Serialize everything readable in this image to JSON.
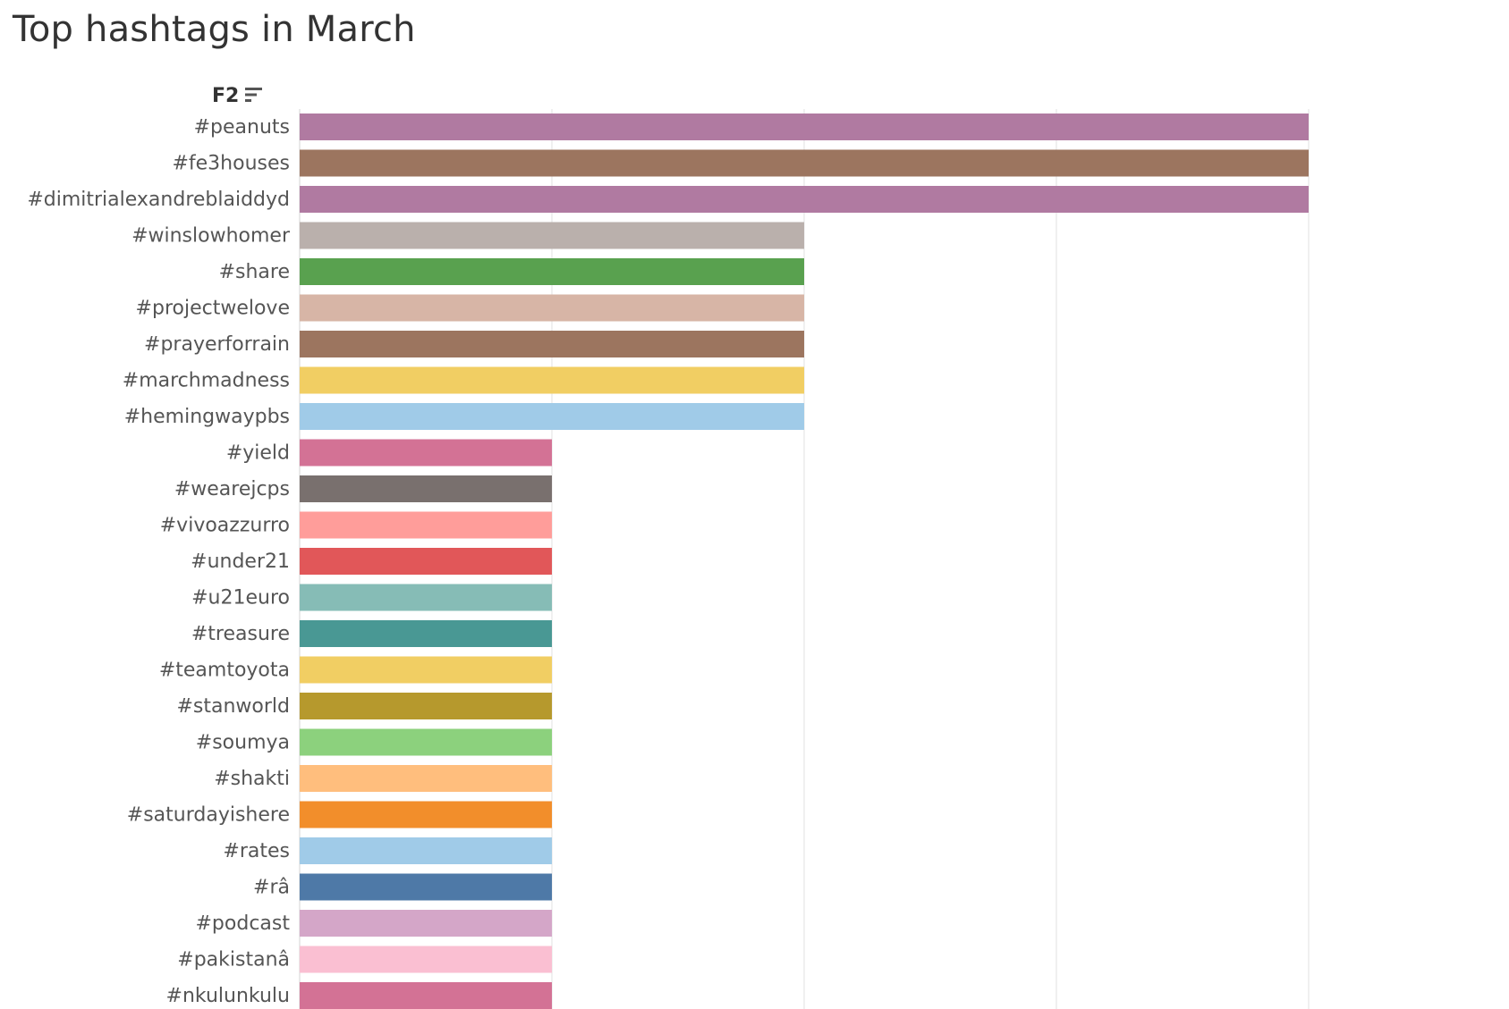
{
  "title": "Top hashtags in March",
  "field": {
    "label": "F2",
    "sort_icon": "sort-descending-icon"
  },
  "chart_data": {
    "type": "bar",
    "orientation": "horizontal",
    "title": "Top hashtags in March",
    "xlabel": "",
    "ylabel": "F2",
    "xlim": [
      0,
      4
    ],
    "grid": true,
    "legend": "none",
    "categories": [
      "#peanuts",
      "#fe3houses",
      "#dimitrialexandreblaiddyd",
      "#winslowhomer",
      "#share",
      "#projectwelove",
      "#prayerforrain",
      "#marchmadness",
      "#hemingwaypbs",
      "#yield",
      "#wearejcps",
      "#vivoazzurro",
      "#under21",
      "#u21euro",
      "#treasure",
      "#teamtoyota",
      "#stanworld",
      "#soumya",
      "#shakti",
      "#saturdayishere",
      "#rates",
      "#râ",
      "#podcast",
      "#pakistanâ",
      "#nkulunkulu"
    ],
    "values": [
      4,
      4,
      4,
      2,
      2,
      2,
      2,
      2,
      2,
      1,
      1,
      1,
      1,
      1,
      1,
      1,
      1,
      1,
      1,
      1,
      1,
      1,
      1,
      1,
      1
    ],
    "colors": [
      "#b07aa1",
      "#9c755f",
      "#b07aa1",
      "#bab0ac",
      "#59a14f",
      "#d7b5a6",
      "#9c755f",
      "#f1ce63",
      "#a0cbe8",
      "#d37295",
      "#79706e",
      "#ff9d9a",
      "#e15759",
      "#86bcb6",
      "#499894",
      "#f1ce63",
      "#b6992d",
      "#8cd17d",
      "#ffbe7d",
      "#f28e2b",
      "#a0cbe8",
      "#4e79a7",
      "#d4a6c8",
      "#fabfd2",
      "#d37295"
    ]
  }
}
